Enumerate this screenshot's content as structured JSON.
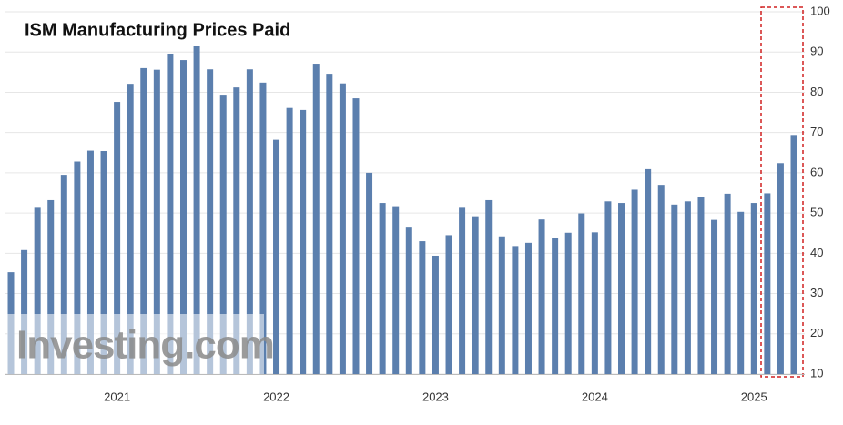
{
  "chart_data": {
    "type": "bar",
    "title": "ISM Manufacturing Prices Paid",
    "watermark": "Investing.com",
    "categories": [
      null,
      null,
      null,
      null,
      null,
      null,
      null,
      null,
      null,
      "2021",
      null,
      null,
      null,
      null,
      null,
      null,
      null,
      null,
      null,
      null,
      null,
      "2022",
      null,
      null,
      null,
      null,
      null,
      null,
      null,
      null,
      null,
      null,
      null,
      "2023",
      null,
      null,
      null,
      null,
      null,
      null,
      null,
      null,
      null,
      null,
      null,
      "2024",
      null,
      null,
      null,
      null,
      null,
      null,
      null,
      null,
      null,
      null,
      null,
      "2025",
      null,
      null
    ],
    "values": [
      35.3,
      40.8,
      51.3,
      53.2,
      59.5,
      62.8,
      65.5,
      65.4,
      77.6,
      82.1,
      86.0,
      85.6,
      89.6,
      88.0,
      92.1,
      85.7,
      79.4,
      81.2,
      85.7,
      82.4,
      68.2,
      76.1,
      75.6,
      87.1,
      84.6,
      82.2,
      78.5,
      60.0,
      52.5,
      51.7,
      46.6,
      43.0,
      39.4,
      44.5,
      51.3,
      49.2,
      53.2,
      44.2,
      41.8,
      42.6,
      48.4,
      43.8,
      45.1,
      49.9,
      45.2,
      52.9,
      52.5,
      55.8,
      60.9,
      57.0,
      52.1,
      52.9,
      54.0,
      48.3,
      54.8,
      50.3,
      52.5,
      54.9,
      62.4,
      69.4
    ],
    "color": "#5b7fae",
    "ylim": [
      10,
      100
    ],
    "yticks": [
      10,
      20,
      30,
      40,
      50,
      60,
      70,
      80,
      90,
      100
    ],
    "grid": true
  }
}
